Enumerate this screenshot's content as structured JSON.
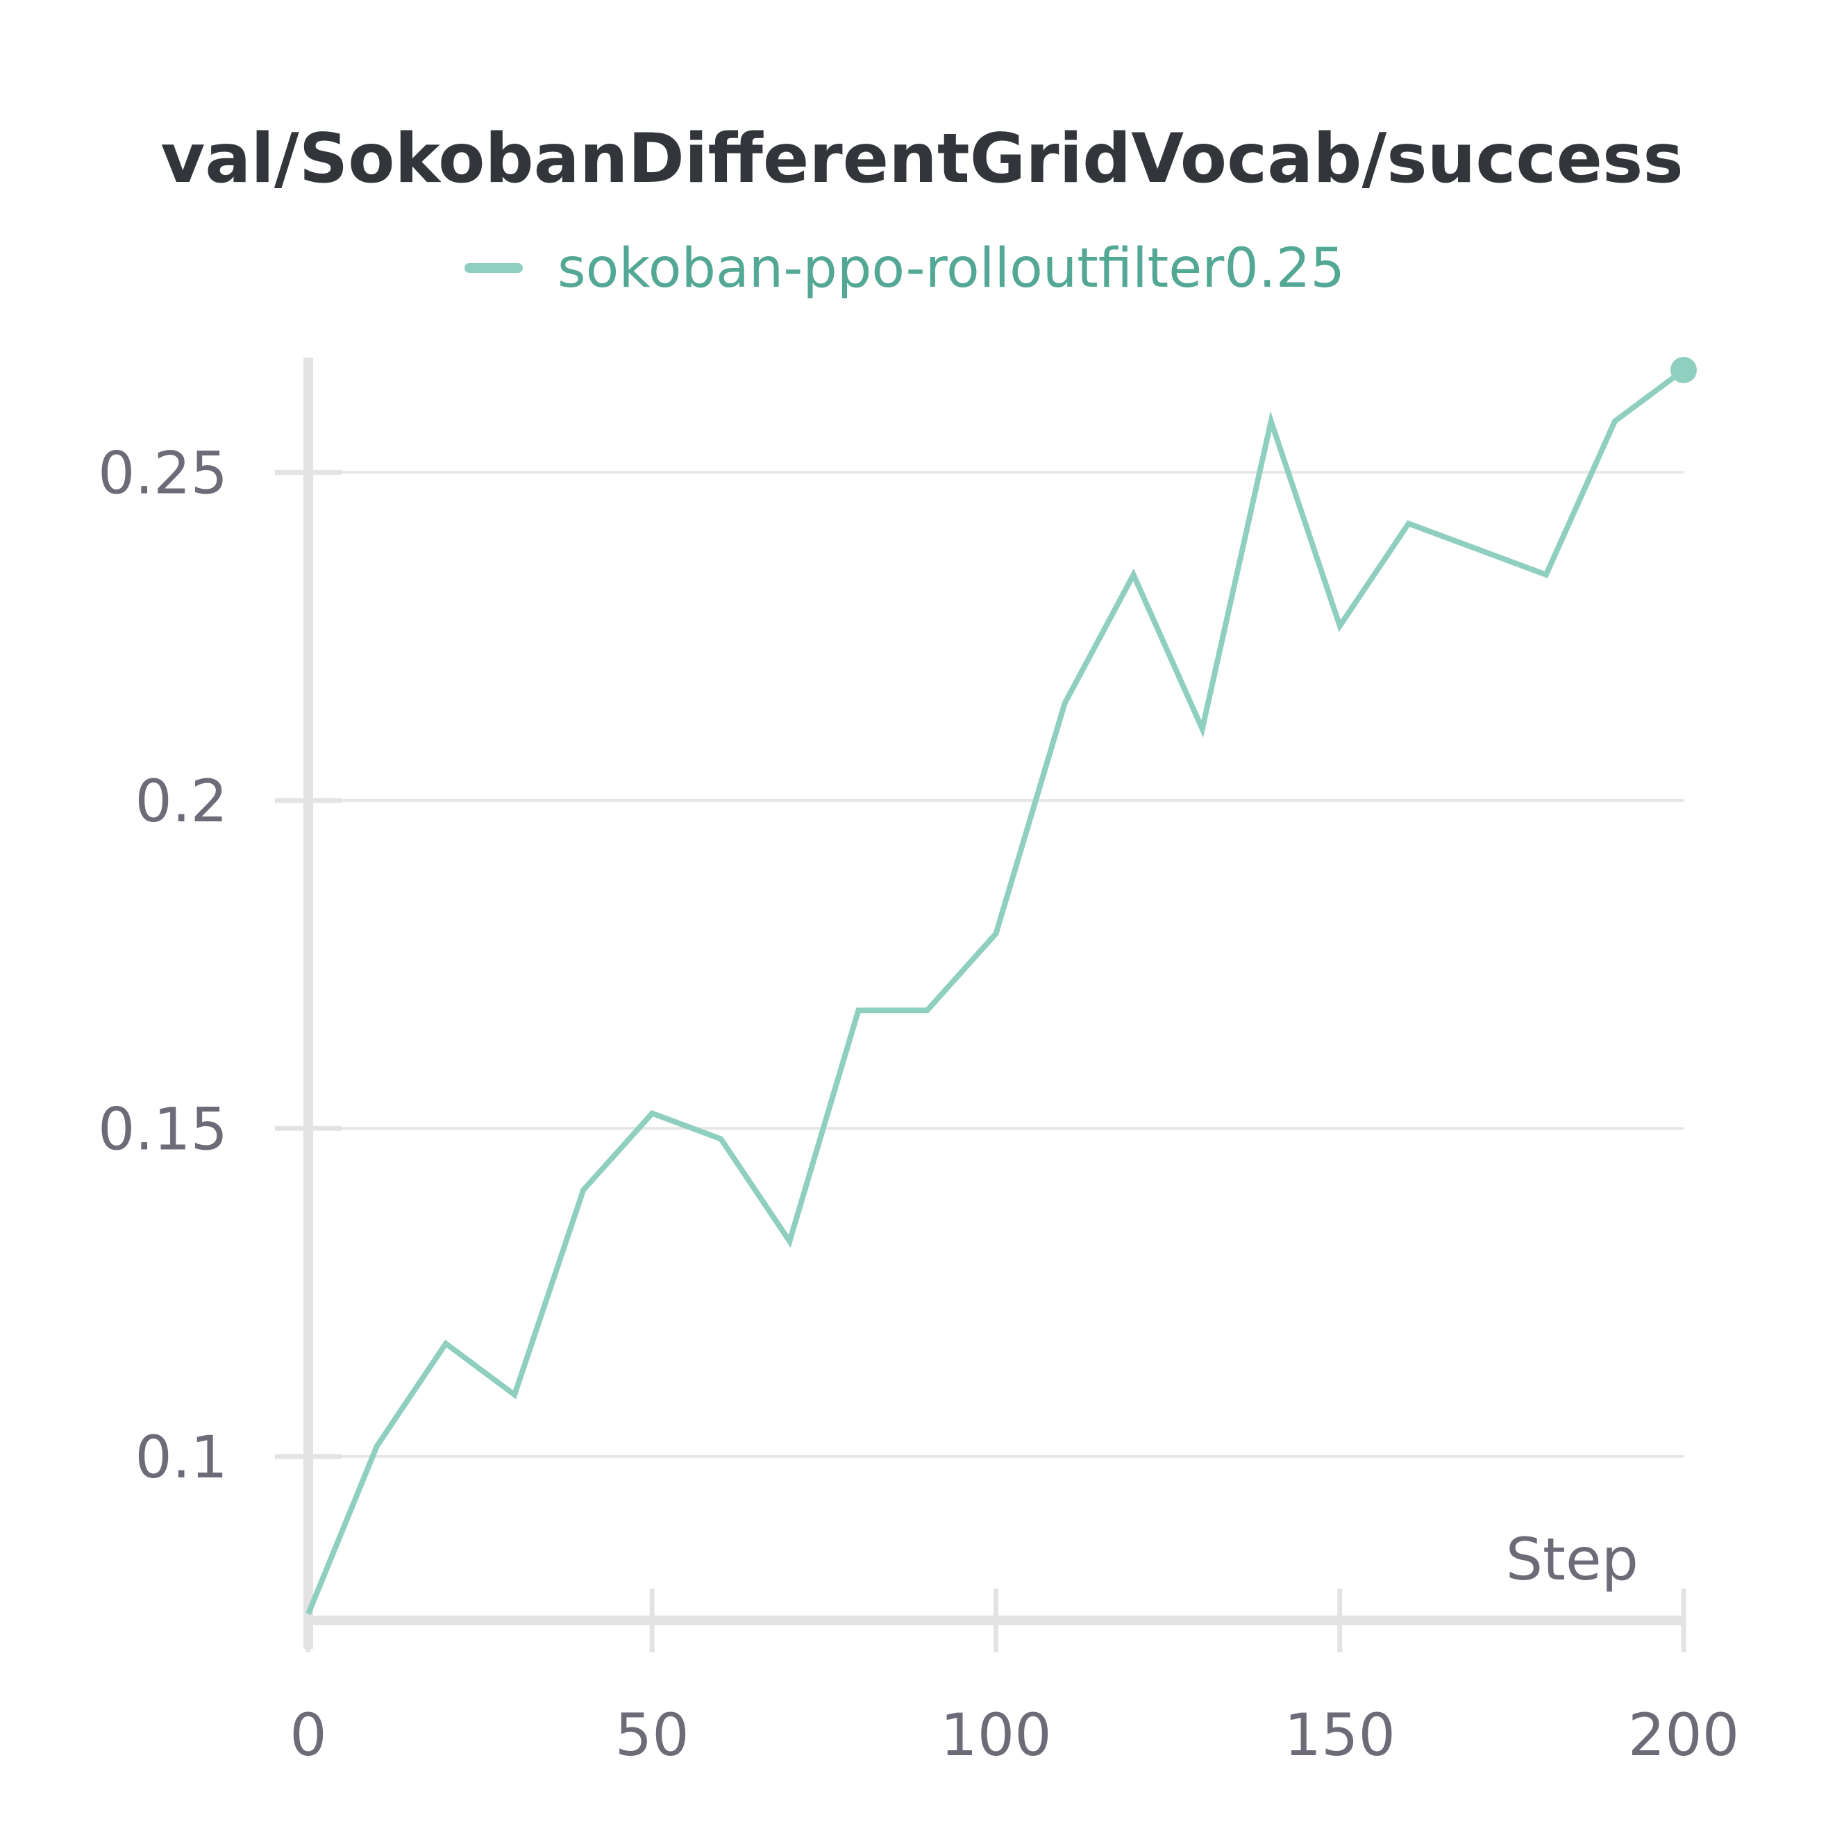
{
  "chart_data": {
    "type": "line",
    "title": "val/SokobanDifferentGridVocab/success",
    "xlabel": "Step",
    "ylabel": "",
    "xlim": [
      0,
      200
    ],
    "ylim": [
      0.075,
      0.2675
    ],
    "x_ticks": [
      0,
      50,
      100,
      150,
      200
    ],
    "x_tick_labels": [
      "0",
      "50",
      "100",
      "150",
      "200"
    ],
    "y_ticks": [
      0.1,
      0.15,
      0.2,
      0.25
    ],
    "y_tick_labels": [
      "0.1",
      "0.15",
      "0.2",
      "0.25"
    ],
    "grid": "horizontal",
    "legend_position": "top-center",
    "colors": {
      "series": "#8ecfbf",
      "legend_text": "#52a894",
      "grid": "#e6e6e6",
      "axis": "#e3e3e4",
      "tick_text": "#6c6b78",
      "title": "#32363b"
    },
    "series": [
      {
        "name": "sokoban-ppo-rolloutfilter0.25",
        "x": [
          0,
          10,
          20,
          30,
          40,
          50,
          60,
          70,
          80,
          90,
          100,
          110,
          120,
          130,
          140,
          150,
          160,
          170,
          180,
          190,
          200
        ],
        "y": [
          0.076,
          0.1016,
          0.1172,
          0.1094,
          0.1406,
          0.1523,
          0.1484,
          0.1328,
          0.168,
          0.168,
          0.1797,
          0.2148,
          0.2344,
          0.2109,
          0.2578,
          0.2266,
          0.2422,
          0.2383,
          0.2344,
          0.2578,
          0.2656
        ],
        "end_marker": true
      }
    ]
  }
}
